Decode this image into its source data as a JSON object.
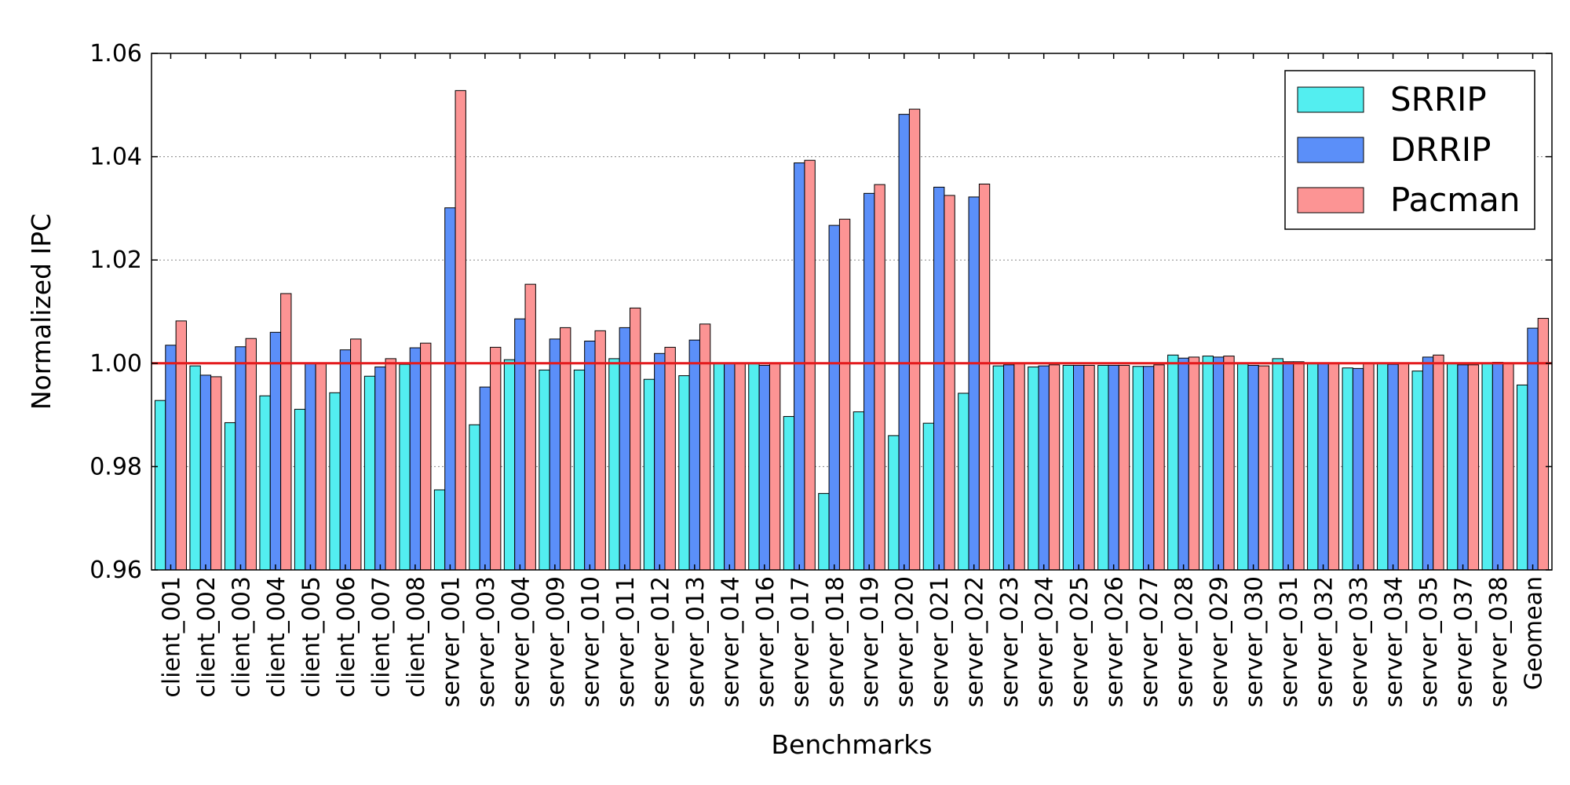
{
  "chart_data": {
    "type": "bar",
    "title": "",
    "xlabel": "Benchmarks",
    "ylabel": "Normalized IPC",
    "ylim": [
      0.96,
      1.06
    ],
    "yticks": [
      "0.96",
      "0.98",
      "1.00",
      "1.02",
      "1.04",
      "1.06"
    ],
    "grid": "horizontal dotted",
    "reference_line": {
      "value": 1.0,
      "color": "#e41a1c"
    },
    "legend_position": "top-right",
    "categories": [
      "client_001",
      "client_002",
      "client_003",
      "client_004",
      "client_005",
      "client_006",
      "client_007",
      "client_008",
      "server_001",
      "server_003",
      "server_004",
      "server_009",
      "server_010",
      "server_011",
      "server_012",
      "server_013",
      "server_014",
      "server_016",
      "server_017",
      "server_018",
      "server_019",
      "server_020",
      "server_021",
      "server_022",
      "server_023",
      "server_024",
      "server_025",
      "server_026",
      "server_027",
      "server_028",
      "server_029",
      "server_030",
      "server_031",
      "server_032",
      "server_033",
      "server_034",
      "server_035",
      "server_037",
      "server_038",
      "Geomean"
    ],
    "series": [
      {
        "name": "SRRIP",
        "color": "#53eef0",
        "values": [
          0.9928,
          0.9995,
          0.9885,
          0.9937,
          0.9911,
          0.9943,
          0.9975,
          0.9998,
          0.9755,
          0.9881,
          1.0007,
          0.9987,
          0.9987,
          1.0009,
          0.9969,
          0.9976,
          1.0,
          0.9999,
          0.9897,
          0.9748,
          0.9906,
          0.986,
          0.9884,
          0.9942,
          0.9995,
          0.9993,
          0.9996,
          0.9996,
          0.9994,
          1.0016,
          1.0014,
          0.9999,
          1.0009,
          1.0,
          0.9991,
          1.0,
          0.9985,
          1.0,
          1.0,
          0.9958
        ]
      },
      {
        "name": "DRRIP",
        "color": "#5b8ff9",
        "values": [
          1.0035,
          0.9977,
          1.0032,
          1.006,
          1.0,
          1.0026,
          0.9993,
          1.003,
          1.0301,
          0.9954,
          1.0086,
          1.0047,
          1.0043,
          1.0069,
          1.0019,
          1.0045,
          1.0,
          0.9996,
          1.0388,
          1.0267,
          1.0329,
          1.0482,
          1.0341,
          1.0322,
          0.9997,
          0.9995,
          0.9996,
          0.9996,
          0.9994,
          1.001,
          1.0012,
          0.9996,
          1.0003,
          0.9999,
          0.999,
          0.9998,
          1.0012,
          0.9997,
          1.0002,
          1.0068
        ]
      },
      {
        "name": "Pacman",
        "color": "#fc9494",
        "values": [
          1.0082,
          0.9974,
          1.0048,
          1.0135,
          1.0,
          1.0047,
          1.0009,
          1.0039,
          1.0528,
          1.0031,
          1.0153,
          1.0069,
          1.0063,
          1.0107,
          1.0031,
          1.0076,
          1.0,
          1.0,
          1.0393,
          1.0279,
          1.0346,
          1.0492,
          1.0325,
          1.0347,
          1.0,
          0.9997,
          0.9996,
          0.9996,
          0.9997,
          1.0012,
          1.0014,
          0.9995,
          1.0003,
          1.0,
          0.9999,
          0.9999,
          1.0016,
          0.9997,
          0.9999,
          1.0087
        ]
      }
    ]
  }
}
